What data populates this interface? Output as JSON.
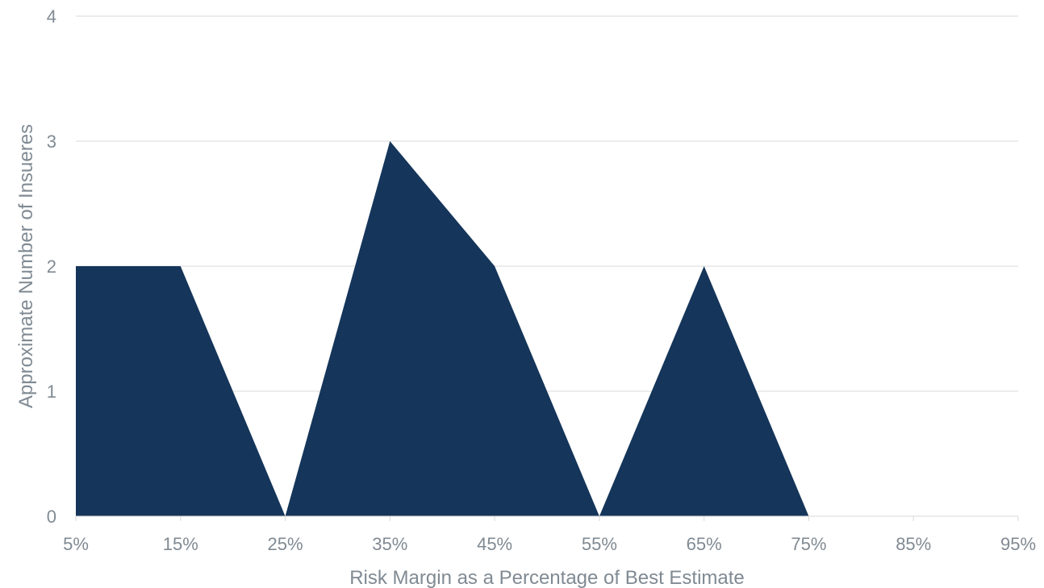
{
  "chart_data": {
    "type": "area",
    "categories": [
      "5%",
      "15%",
      "25%",
      "35%",
      "45%",
      "55%",
      "65%",
      "75%",
      "85%",
      "95%"
    ],
    "series": [
      {
        "values": [
          2,
          2,
          0,
          3,
          2,
          0,
          2,
          0,
          null,
          null
        ]
      }
    ],
    "xlabel": "Risk Margin as a Percentage of Best Estimate",
    "ylabel": "Approximate Number of Insueres",
    "ylim": [
      0,
      4
    ],
    "yticks": [
      "0",
      "1",
      "2",
      "3",
      "4"
    ],
    "grid": "horizontal",
    "colors": {
      "series": "#15355a",
      "grid": "#d9d9d9",
      "text": "#808a93"
    }
  }
}
